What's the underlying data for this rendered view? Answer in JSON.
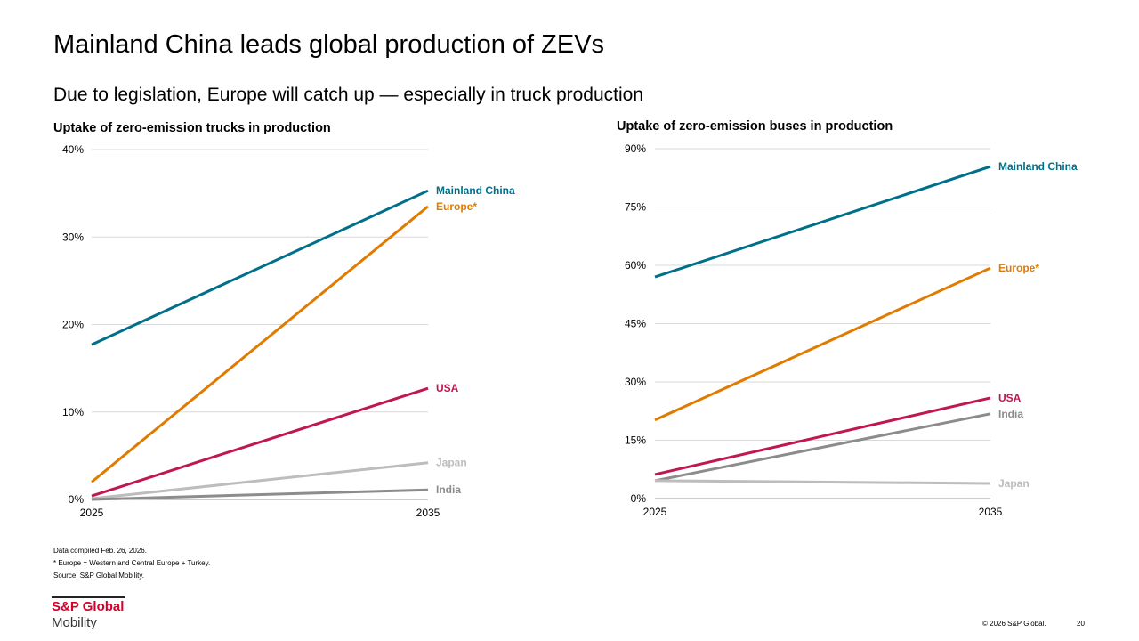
{
  "slide": {
    "title": "Mainland China leads global production of ZEVs",
    "subtitle": "Due to legislation, Europe will catch up — especially in truck production",
    "footnotes": [
      "Data compiled Feb. 26, 2026.",
      "* Europe = Western and Central Europe + Turkey.",
      "Source: S&P Global Mobility."
    ],
    "logo": {
      "line1": "S&P Global",
      "line2": "Mobility"
    },
    "copyright": "© 2026 S&P Global.",
    "page_number": "20"
  },
  "chart_data": [
    {
      "type": "line",
      "title": "Uptake of zero-emission trucks in production",
      "x": [
        "2025",
        "2035"
      ],
      "ylim": [
        0,
        40
      ],
      "yticks": [
        "0%",
        "10%",
        "20%",
        "30%",
        "40%"
      ],
      "ytick_values": [
        0,
        10,
        20,
        30,
        40
      ],
      "grid": true,
      "legend": "direct labels at line ends",
      "series": [
        {
          "name": "Mainland China",
          "values": [
            17.7,
            35.3
          ],
          "color": "#00708a"
        },
        {
          "name": "Europe*",
          "values": [
            2.0,
            33.5
          ],
          "color": "#e07b00"
        },
        {
          "name": "USA",
          "values": [
            0.4,
            12.7
          ],
          "color": "#c0174f"
        },
        {
          "name": "Japan",
          "values": [
            0.1,
            4.2
          ],
          "color": "#bdbdbd"
        },
        {
          "name": "India",
          "values": [
            0.0,
            1.1
          ],
          "color": "#8c8c8c"
        }
      ]
    },
    {
      "type": "line",
      "title": "Uptake of zero-emission buses in production",
      "x": [
        "2025",
        "2035"
      ],
      "ylim": [
        0,
        90
      ],
      "yticks": [
        "0%",
        "15%",
        "30%",
        "45%",
        "60%",
        "75%",
        "90%"
      ],
      "ytick_values": [
        0,
        15,
        30,
        45,
        60,
        75,
        90
      ],
      "grid": true,
      "legend": "direct labels at line ends",
      "series": [
        {
          "name": "Mainland China",
          "values": [
            57.0,
            85.4
          ],
          "color": "#00708a"
        },
        {
          "name": "Europe*",
          "values": [
            20.2,
            59.3
          ],
          "color": "#e07b00"
        },
        {
          "name": "USA",
          "values": [
            6.2,
            25.9
          ],
          "color": "#c0174f"
        },
        {
          "name": "India",
          "values": [
            4.6,
            21.8
          ],
          "color": "#8c8c8c"
        },
        {
          "name": "Japan",
          "values": [
            4.6,
            3.9
          ],
          "color": "#bdbdbd"
        }
      ]
    }
  ]
}
